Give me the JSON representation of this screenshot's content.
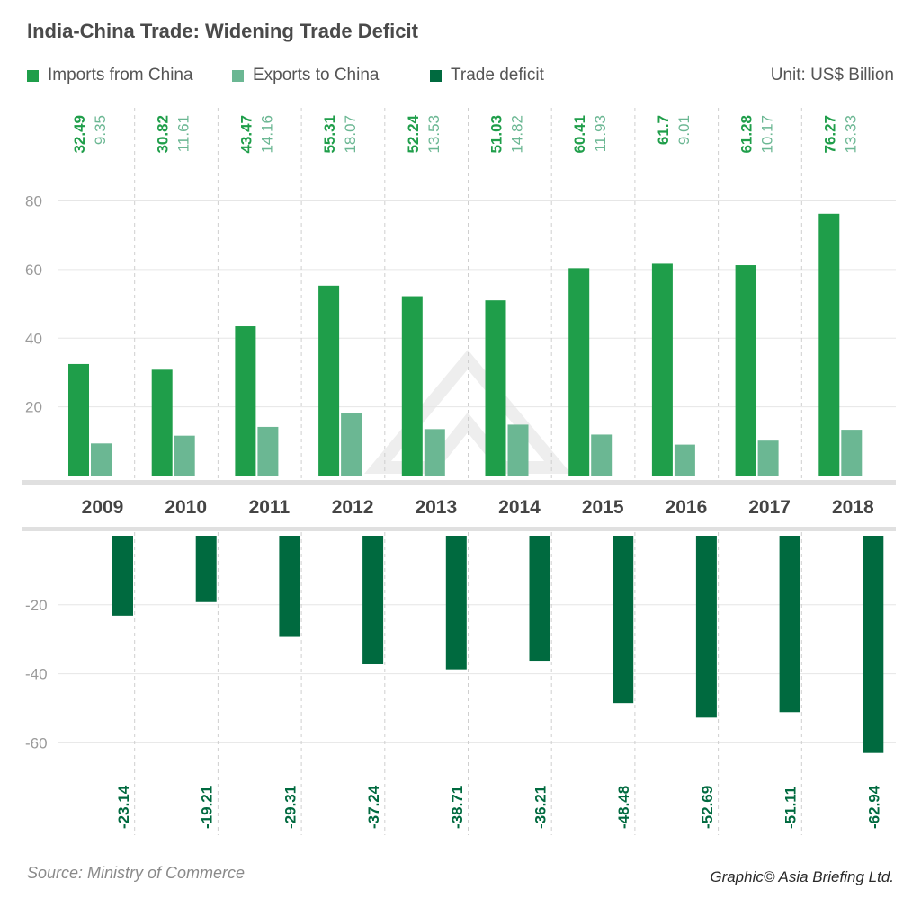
{
  "title": "India-China Trade: Widening Trade Deficit",
  "unit_label": "Unit: US$ Billion",
  "source": "Source: Ministry of Commerce",
  "credit": "Graphic© Asia Briefing Ltd.",
  "legend": [
    {
      "label": "Imports from China",
      "color": "#1f9e4a"
    },
    {
      "label": "Exports to China",
      "color": "#6bb793"
    },
    {
      "label": "Trade deficit",
      "color": "#006a3f"
    }
  ],
  "chart_data": {
    "type": "bar",
    "categories": [
      "2009",
      "2010",
      "2011",
      "2012",
      "2013",
      "2014",
      "2015",
      "2016",
      "2017",
      "2018"
    ],
    "series": [
      {
        "name": "Imports from China",
        "values": [
          32.49,
          30.82,
          43.47,
          55.31,
          52.24,
          51.03,
          60.41,
          61.7,
          61.28,
          76.27
        ]
      },
      {
        "name": "Exports to China",
        "values": [
          9.35,
          11.61,
          14.16,
          18.07,
          13.53,
          14.82,
          11.93,
          9.01,
          10.17,
          13.33
        ]
      },
      {
        "name": "Trade deficit",
        "values": [
          -23.14,
          -19.21,
          -29.31,
          -37.24,
          -38.71,
          -36.21,
          -48.48,
          -52.69,
          -51.11,
          -62.94
        ]
      }
    ],
    "upper_ylim": [
      0,
      80
    ],
    "upper_yticks": [
      20,
      40,
      60,
      80
    ],
    "lower_ylim": [
      -65,
      0
    ],
    "lower_yticks": [
      -20,
      -40,
      -60
    ],
    "data_labels": {
      "imports": [
        "32.49",
        "30.82",
        "43.47",
        "55.31",
        "52.24",
        "51.03",
        "60.41",
        "61.7",
        "61.28",
        "76.27"
      ],
      "exports": [
        "9.35",
        "11.61",
        "14.16",
        "18.07",
        "13.53",
        "14.82",
        "11.93",
        "9.01",
        "10.17",
        "13.33"
      ],
      "deficit": [
        "-23.14",
        "-19.21",
        "-29.31",
        "-37.24",
        "-38.71",
        "-36.21",
        "-48.48",
        "-52.69",
        "-51.11",
        "-62.94"
      ]
    },
    "grid": true
  }
}
